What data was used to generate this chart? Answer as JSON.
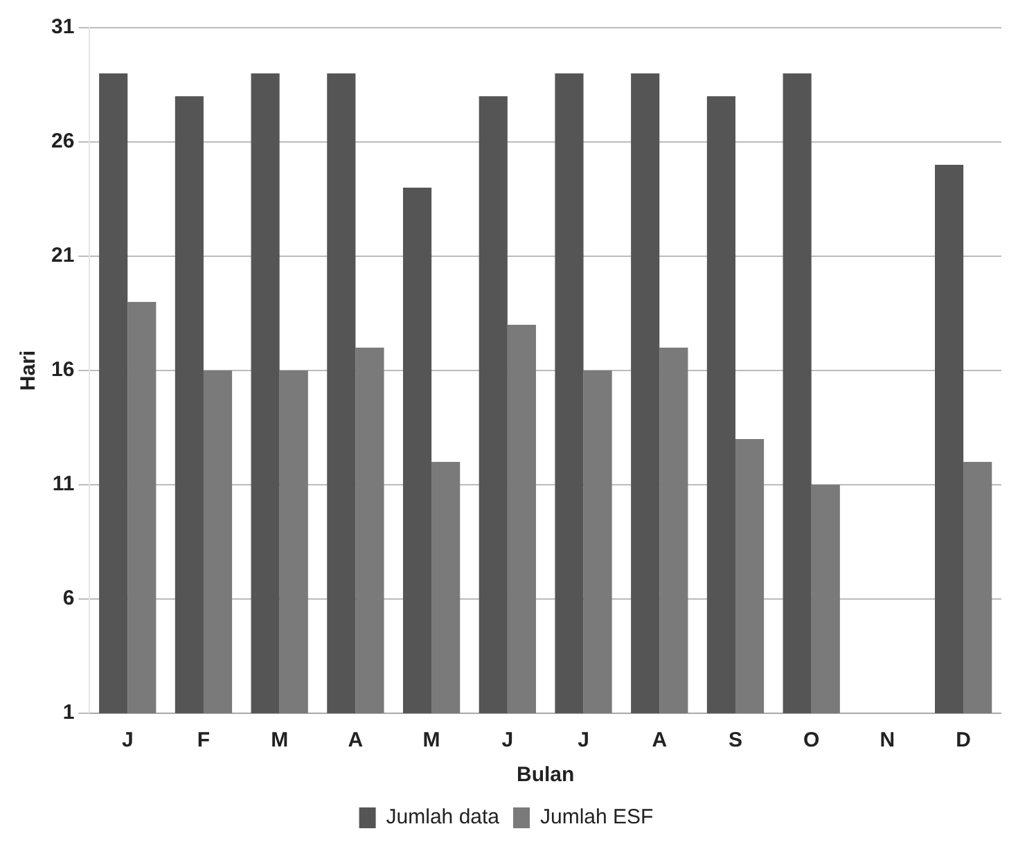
{
  "chart_data": {
    "type": "bar",
    "xlabel": "Bulan",
    "ylabel": "Hari",
    "categories": [
      "J",
      "F",
      "M",
      "A",
      "M",
      "J",
      "J",
      "A",
      "S",
      "O",
      "N",
      "D"
    ],
    "series": [
      {
        "name": "Jumlah data",
        "color": "#555555",
        "values": [
          29,
          28,
          29,
          29,
          24,
          28,
          29,
          29,
          28,
          29,
          null,
          25
        ]
      },
      {
        "name": "Jumlah ESF",
        "color": "#7a7a7a",
        "values": [
          19,
          16,
          16,
          17,
          12,
          18,
          16,
          17,
          13,
          11,
          null,
          12
        ]
      }
    ],
    "ylim": [
      1,
      31
    ],
    "yticks": [
      1,
      6,
      11,
      16,
      21,
      26,
      31
    ],
    "grid": "y",
    "legend": "bottom"
  }
}
